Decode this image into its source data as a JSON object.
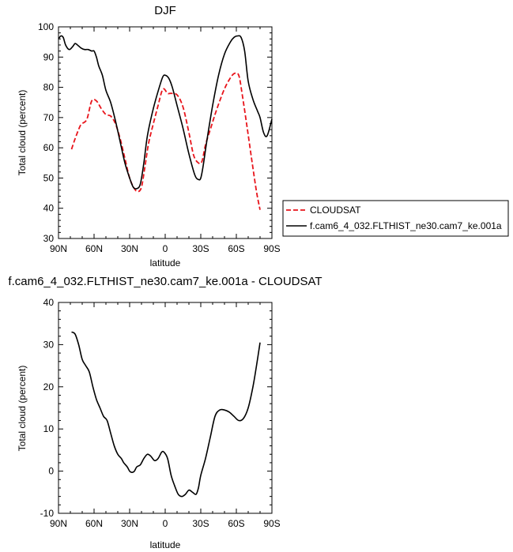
{
  "chart_data": [
    {
      "type": "line",
      "title": "DJF",
      "xlabel": "latitude",
      "ylabel": "Total cloud (percent)",
      "ylim": [
        30,
        100
      ],
      "xlim": [
        90,
        -90
      ],
      "x_ticks": [
        90,
        60,
        30,
        0,
        -30,
        -60,
        -90
      ],
      "x_tick_labels": [
        "90N",
        "60N",
        "30N",
        "0",
        "30S",
        "60S",
        "90S"
      ],
      "y_ticks": [
        30,
        40,
        50,
        60,
        70,
        80,
        90,
        100
      ],
      "y_tick_labels": [
        "30",
        "40",
        "50",
        "60",
        "70",
        "80",
        "90",
        "100"
      ],
      "legend": "outside-right",
      "series": [
        {
          "name": "CLOUDSAT",
          "color": "#e8141b",
          "dash": "dashed",
          "x": [
            79,
            76,
            72,
            70,
            66,
            62,
            58,
            54,
            50,
            46,
            42,
            38,
            34,
            30,
            26,
            23,
            20,
            17,
            14,
            10,
            6,
            3,
            1,
            -2,
            -5,
            -10,
            -15,
            -20,
            -24,
            -28,
            -31,
            -34,
            -38,
            -42,
            -46,
            -50,
            -54,
            -58,
            -62,
            -65,
            -69,
            -73,
            -77,
            -80
          ],
          "y": [
            59.5,
            63,
            67,
            68,
            69.5,
            75.5,
            75.5,
            73,
            71,
            70.5,
            68,
            63,
            56.5,
            50,
            46.5,
            45.5,
            47,
            54,
            61.5,
            68,
            74,
            78.5,
            79.5,
            78,
            78,
            77.5,
            73.5,
            65,
            57.5,
            55,
            55.5,
            61,
            66,
            71,
            75.5,
            79.5,
            82.5,
            84.5,
            84,
            77.5,
            67,
            56,
            45.5,
            39.5
          ]
        },
        {
          "name": "f.cam6_4_032.FLTHIST_ne30.cam7_ke.001a",
          "color": "#000000",
          "dash": "solid",
          "x": [
            90,
            88,
            86,
            84,
            81,
            78,
            76,
            74,
            71,
            68,
            65,
            62,
            60,
            58,
            56,
            53,
            50,
            46,
            42,
            38,
            34,
            30,
            27,
            24,
            21,
            18,
            15,
            10,
            5,
            2,
            0,
            -3,
            -6,
            -10,
            -15,
            -20,
            -25,
            -28,
            -30,
            -32,
            -35,
            -40,
            -45,
            -50,
            -55,
            -58,
            -61,
            -64,
            -67,
            -70,
            -74,
            -78,
            -80,
            -83,
            -86,
            -90
          ],
          "y": [
            96,
            97,
            96.5,
            94,
            92.5,
            93.5,
            94.5,
            94,
            93,
            92.5,
            92.5,
            92,
            92,
            90,
            87,
            84,
            79,
            75,
            69,
            62,
            55,
            50,
            47,
            46.5,
            48,
            55,
            64,
            73,
            80,
            83.5,
            84,
            83,
            80,
            74,
            66.5,
            58,
            51,
            49.5,
            50,
            54,
            62,
            74,
            84,
            91,
            95,
            96.5,
            97,
            96.5,
            92,
            82,
            76,
            72,
            70,
            65,
            64,
            69.5
          ]
        }
      ]
    },
    {
      "type": "line",
      "title": "f.cam6_4_032.FLTHIST_ne30.cam7_ke.001a - CLOUDSAT",
      "xlabel": "latitude",
      "ylabel": "Total cloud (percent)",
      "ylim": [
        -10,
        40
      ],
      "xlim": [
        90,
        -90
      ],
      "x_ticks": [
        90,
        60,
        30,
        0,
        -30,
        -60,
        -90
      ],
      "x_tick_labels": [
        "90N",
        "60N",
        "30N",
        "0",
        "30S",
        "60S",
        "90S"
      ],
      "y_ticks": [
        -10,
        0,
        10,
        20,
        30,
        40
      ],
      "y_tick_labels": [
        "-10",
        "0",
        "10",
        "20",
        "30",
        "40"
      ],
      "series": [
        {
          "color": "#000000",
          "dash": "solid",
          "x": [
            79,
            76,
            73,
            70,
            67,
            64,
            61,
            58,
            55,
            52,
            49,
            46,
            43,
            40,
            37,
            35,
            32,
            30,
            28,
            26,
            24,
            21,
            18,
            15,
            12,
            9,
            6,
            3,
            1,
            -2,
            -5,
            -8,
            -11,
            -14,
            -17,
            -20,
            -23,
            -26,
            -28,
            -30,
            -34,
            -38,
            -42,
            -46,
            -50,
            -54,
            -58,
            -62,
            -66,
            -70,
            -74,
            -77,
            -80
          ],
          "y": [
            33,
            32.5,
            30,
            26.5,
            25,
            23.5,
            20,
            17,
            15,
            13,
            12,
            9,
            6,
            4,
            3,
            2,
            1,
            0,
            -0.3,
            0,
            1,
            1.5,
            3,
            4,
            3.5,
            2.5,
            3,
            4.5,
            4.5,
            3,
            -1,
            -3.5,
            -5.5,
            -6,
            -5.5,
            -4.5,
            -5,
            -5.5,
            -4,
            -1,
            3,
            8,
            13,
            14.5,
            14.5,
            14,
            13,
            12,
            12.5,
            15,
            20,
            25,
            30.5
          ]
        }
      ]
    }
  ]
}
